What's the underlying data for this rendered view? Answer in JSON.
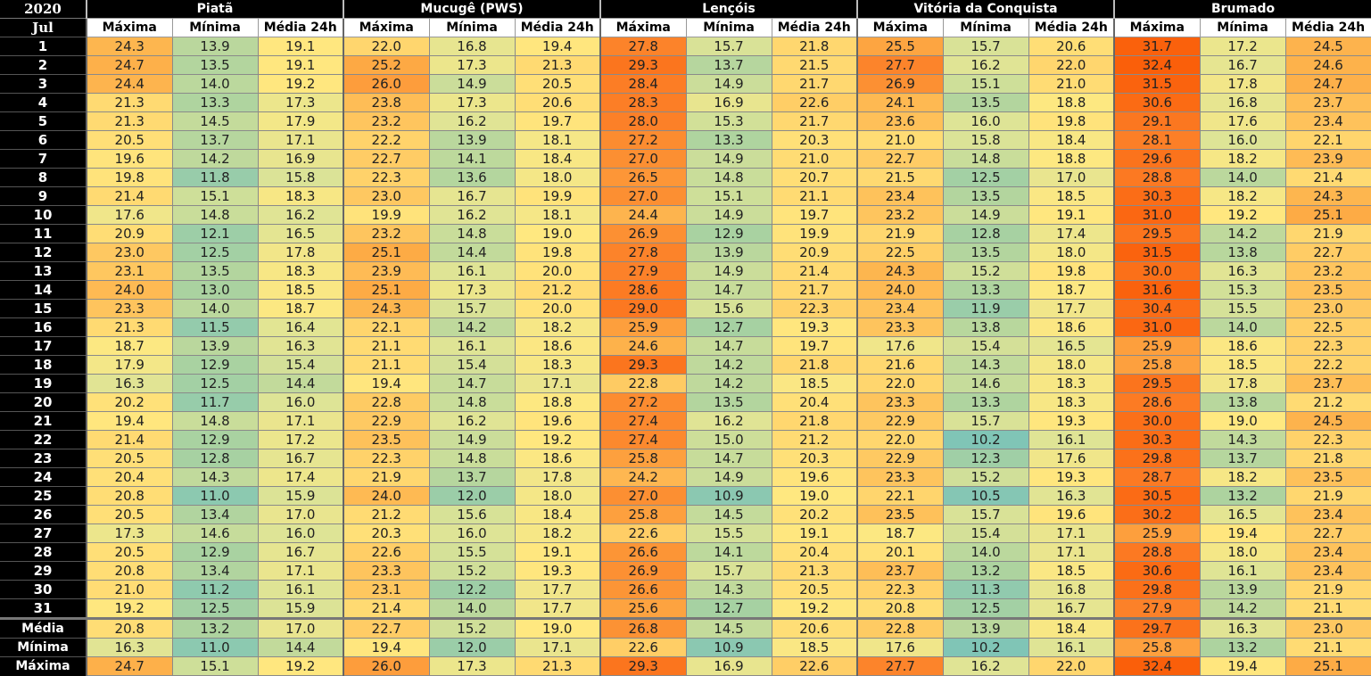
{
  "header": {
    "year": "2020",
    "month": "Jul",
    "stations": [
      "Piatã",
      "Mucugê (PWS)",
      "Lençóis",
      "Vitória da Conquista",
      "Brumado"
    ],
    "subcols": [
      "Máxima",
      "Mínima",
      "Média 24h"
    ]
  },
  "rows": [
    {
      "label": "1",
      "values": [
        "24.3",
        "13.9",
        "19.1",
        "22.0",
        "16.8",
        "19.4",
        "27.8",
        "15.7",
        "21.8",
        "25.5",
        "15.7",
        "20.6",
        "31.7",
        "17.2",
        "24.5"
      ]
    },
    {
      "label": "2",
      "values": [
        "24.7",
        "13.5",
        "19.1",
        "25.2",
        "17.3",
        "21.3",
        "29.3",
        "13.7",
        "21.5",
        "27.7",
        "16.2",
        "22.0",
        "32.4",
        "16.7",
        "24.6"
      ]
    },
    {
      "label": "3",
      "values": [
        "24.4",
        "14.0",
        "19.2",
        "26.0",
        "14.9",
        "20.5",
        "28.4",
        "14.9",
        "21.7",
        "26.9",
        "15.1",
        "21.0",
        "31.5",
        "17.8",
        "24.7"
      ]
    },
    {
      "label": "4",
      "values": [
        "21.3",
        "13.3",
        "17.3",
        "23.8",
        "17.3",
        "20.6",
        "28.3",
        "16.9",
        "22.6",
        "24.1",
        "13.5",
        "18.8",
        "30.6",
        "16.8",
        "23.7"
      ]
    },
    {
      "label": "5",
      "values": [
        "21.3",
        "14.5",
        "17.9",
        "23.2",
        "16.2",
        "19.7",
        "28.0",
        "15.3",
        "21.7",
        "23.6",
        "16.0",
        "19.8",
        "29.1",
        "17.6",
        "23.4"
      ]
    },
    {
      "label": "6",
      "values": [
        "20.5",
        "13.7",
        "17.1",
        "22.2",
        "13.9",
        "18.1",
        "27.2",
        "13.3",
        "20.3",
        "21.0",
        "15.8",
        "18.4",
        "28.1",
        "16.0",
        "22.1"
      ]
    },
    {
      "label": "7",
      "values": [
        "19.6",
        "14.2",
        "16.9",
        "22.7",
        "14.1",
        "18.4",
        "27.0",
        "14.9",
        "21.0",
        "22.7",
        "14.8",
        "18.8",
        "29.6",
        "18.2",
        "23.9"
      ]
    },
    {
      "label": "8",
      "values": [
        "19.8",
        "11.8",
        "15.8",
        "22.3",
        "13.6",
        "18.0",
        "26.5",
        "14.8",
        "20.7",
        "21.5",
        "12.5",
        "17.0",
        "28.8",
        "14.0",
        "21.4"
      ]
    },
    {
      "label": "9",
      "values": [
        "21.4",
        "15.1",
        "18.3",
        "23.0",
        "16.7",
        "19.9",
        "27.0",
        "15.1",
        "21.1",
        "23.4",
        "13.5",
        "18.5",
        "30.3",
        "18.2",
        "24.3"
      ]
    },
    {
      "label": "10",
      "values": [
        "17.6",
        "14.8",
        "16.2",
        "19.9",
        "16.2",
        "18.1",
        "24.4",
        "14.9",
        "19.7",
        "23.2",
        "14.9",
        "19.1",
        "31.0",
        "19.2",
        "25.1"
      ]
    },
    {
      "label": "11",
      "values": [
        "20.9",
        "12.1",
        "16.5",
        "23.2",
        "14.8",
        "19.0",
        "26.9",
        "12.9",
        "19.9",
        "21.9",
        "12.8",
        "17.4",
        "29.5",
        "14.2",
        "21.9"
      ]
    },
    {
      "label": "12",
      "values": [
        "23.0",
        "12.5",
        "17.8",
        "25.1",
        "14.4",
        "19.8",
        "27.8",
        "13.9",
        "20.9",
        "22.5",
        "13.5",
        "18.0",
        "31.5",
        "13.8",
        "22.7"
      ]
    },
    {
      "label": "13",
      "values": [
        "23.1",
        "13.5",
        "18.3",
        "23.9",
        "16.1",
        "20.0",
        "27.9",
        "14.9",
        "21.4",
        "24.3",
        "15.2",
        "19.8",
        "30.0",
        "16.3",
        "23.2"
      ]
    },
    {
      "label": "14",
      "values": [
        "24.0",
        "13.0",
        "18.5",
        "25.1",
        "17.3",
        "21.2",
        "28.6",
        "14.7",
        "21.7",
        "24.0",
        "13.3",
        "18.7",
        "31.6",
        "15.3",
        "23.5"
      ]
    },
    {
      "label": "15",
      "values": [
        "23.3",
        "14.0",
        "18.7",
        "24.3",
        "15.7",
        "20.0",
        "29.0",
        "15.6",
        "22.3",
        "23.4",
        "11.9",
        "17.7",
        "30.4",
        "15.5",
        "23.0"
      ]
    },
    {
      "label": "16",
      "values": [
        "21.3",
        "11.5",
        "16.4",
        "22.1",
        "14.2",
        "18.2",
        "25.9",
        "12.7",
        "19.3",
        "23.3",
        "13.8",
        "18.6",
        "31.0",
        "14.0",
        "22.5"
      ]
    },
    {
      "label": "17",
      "values": [
        "18.7",
        "13.9",
        "16.3",
        "21.1",
        "16.1",
        "18.6",
        "24.6",
        "14.7",
        "19.7",
        "17.6",
        "15.4",
        "16.5",
        "25.9",
        "18.6",
        "22.3"
      ]
    },
    {
      "label": "18",
      "values": [
        "17.9",
        "12.9",
        "15.4",
        "21.1",
        "15.4",
        "18.3",
        "29.3",
        "14.2",
        "21.8",
        "21.6",
        "14.3",
        "18.0",
        "25.8",
        "18.5",
        "22.2"
      ]
    },
    {
      "label": "19",
      "values": [
        "16.3",
        "12.5",
        "14.4",
        "19.4",
        "14.7",
        "17.1",
        "22.8",
        "14.2",
        "18.5",
        "22.0",
        "14.6",
        "18.3",
        "29.5",
        "17.8",
        "23.7"
      ]
    },
    {
      "label": "20",
      "values": [
        "20.2",
        "11.7",
        "16.0",
        "22.8",
        "14.8",
        "18.8",
        "27.2",
        "13.5",
        "20.4",
        "23.3",
        "13.3",
        "18.3",
        "28.6",
        "13.8",
        "21.2"
      ]
    },
    {
      "label": "21",
      "values": [
        "19.4",
        "14.8",
        "17.1",
        "22.9",
        "16.2",
        "19.6",
        "27.4",
        "16.2",
        "21.8",
        "22.9",
        "15.7",
        "19.3",
        "30.0",
        "19.0",
        "24.5"
      ]
    },
    {
      "label": "22",
      "values": [
        "21.4",
        "12.9",
        "17.2",
        "23.5",
        "14.9",
        "19.2",
        "27.4",
        "15.0",
        "21.2",
        "22.0",
        "10.2",
        "16.1",
        "30.3",
        "14.3",
        "22.3"
      ]
    },
    {
      "label": "23",
      "values": [
        "20.5",
        "12.8",
        "16.7",
        "22.3",
        "14.8",
        "18.6",
        "25.8",
        "14.7",
        "20.3",
        "22.9",
        "12.3",
        "17.6",
        "29.8",
        "13.7",
        "21.8"
      ]
    },
    {
      "label": "24",
      "values": [
        "20.4",
        "14.3",
        "17.4",
        "21.9",
        "13.7",
        "17.8",
        "24.2",
        "14.9",
        "19.6",
        "23.3",
        "15.2",
        "19.3",
        "28.7",
        "18.2",
        "23.5"
      ]
    },
    {
      "label": "25",
      "values": [
        "20.8",
        "11.0",
        "15.9",
        "24.0",
        "12.0",
        "18.0",
        "27.0",
        "10.9",
        "19.0",
        "22.1",
        "10.5",
        "16.3",
        "30.5",
        "13.2",
        "21.9"
      ]
    },
    {
      "label": "26",
      "values": [
        "20.5",
        "13.4",
        "17.0",
        "21.2",
        "15.6",
        "18.4",
        "25.8",
        "14.5",
        "20.2",
        "23.5",
        "15.7",
        "19.6",
        "30.2",
        "16.5",
        "23.4"
      ]
    },
    {
      "label": "27",
      "values": [
        "17.3",
        "14.6",
        "16.0",
        "20.3",
        "16.0",
        "18.2",
        "22.6",
        "15.5",
        "19.1",
        "18.7",
        "15.4",
        "17.1",
        "25.9",
        "19.4",
        "22.7"
      ]
    },
    {
      "label": "28",
      "values": [
        "20.5",
        "12.9",
        "16.7",
        "22.6",
        "15.5",
        "19.1",
        "26.6",
        "14.1",
        "20.4",
        "20.1",
        "14.0",
        "17.1",
        "28.8",
        "18.0",
        "23.4"
      ]
    },
    {
      "label": "29",
      "values": [
        "20.8",
        "13.4",
        "17.1",
        "23.3",
        "15.2",
        "19.3",
        "26.9",
        "15.7",
        "21.3",
        "23.7",
        "13.2",
        "18.5",
        "30.6",
        "16.1",
        "23.4"
      ]
    },
    {
      "label": "30",
      "values": [
        "21.0",
        "11.2",
        "16.1",
        "23.1",
        "12.2",
        "17.7",
        "26.6",
        "14.3",
        "20.5",
        "22.3",
        "11.3",
        "16.8",
        "29.8",
        "13.9",
        "21.9"
      ]
    },
    {
      "label": "31",
      "values": [
        "19.2",
        "12.5",
        "15.9",
        "21.4",
        "14.0",
        "17.7",
        "25.6",
        "12.7",
        "19.2",
        "20.8",
        "12.5",
        "16.7",
        "27.9",
        "14.2",
        "21.1"
      ]
    }
  ],
  "summary": [
    {
      "label": "Média",
      "values": [
        "20.8",
        "13.2",
        "17.0",
        "22.7",
        "15.2",
        "19.0",
        "26.8",
        "14.5",
        "20.6",
        "22.8",
        "13.9",
        "18.4",
        "29.7",
        "16.3",
        "23.0"
      ]
    },
    {
      "label": "Mínima",
      "values": [
        "16.3",
        "11.0",
        "14.4",
        "19.4",
        "12.0",
        "17.1",
        "22.6",
        "10.9",
        "18.5",
        "17.6",
        "10.2",
        "16.1",
        "25.8",
        "13.2",
        "21.1"
      ]
    },
    {
      "label": "Máxima",
      "values": [
        "24.7",
        "15.1",
        "19.2",
        "26.0",
        "17.3",
        "21.3",
        "29.3",
        "16.9",
        "22.6",
        "27.7",
        "16.2",
        "22.0",
        "32.4",
        "19.4",
        "25.1"
      ]
    }
  ]
}
